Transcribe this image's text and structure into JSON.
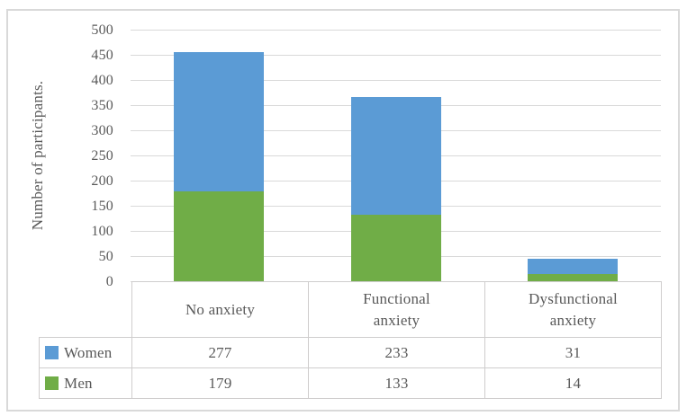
{
  "chart_data": {
    "type": "bar",
    "stacked": true,
    "title": "",
    "categories": [
      "No anxiety",
      "Functional anxiety",
      "Dysfunctional anxiety"
    ],
    "category_header_lines": [
      [
        "No anxiety"
      ],
      [
        "Functional",
        "anxiety"
      ],
      [
        "Dysfunctional",
        "anxiety"
      ]
    ],
    "series": [
      {
        "name": "Women",
        "color": "#5B9BD5",
        "values": [
          277,
          233,
          31
        ]
      },
      {
        "name": "Men",
        "color": "#70AD47",
        "values": [
          179,
          133,
          14
        ]
      }
    ],
    "stack_order_bottom_to_top": [
      "Men",
      "Women"
    ],
    "xlabel": "",
    "ylabel": "Number of participants.",
    "ylim": [
      0,
      500
    ],
    "ytick_step": 50,
    "yticks": [
      0,
      50,
      100,
      150,
      200,
      250,
      300,
      350,
      400,
      450,
      500
    ],
    "grid": true,
    "legend_position": "data-table-left-column",
    "data_table_shown": true
  },
  "colors": {
    "women_series": "#5B9BD5",
    "men_series": "#70AD47",
    "gridline": "#D9D9D9",
    "table_border": "#CFCDCD",
    "frame_border": "#D9D9D9",
    "text": "#595959",
    "background": "#FFFFFF"
  }
}
